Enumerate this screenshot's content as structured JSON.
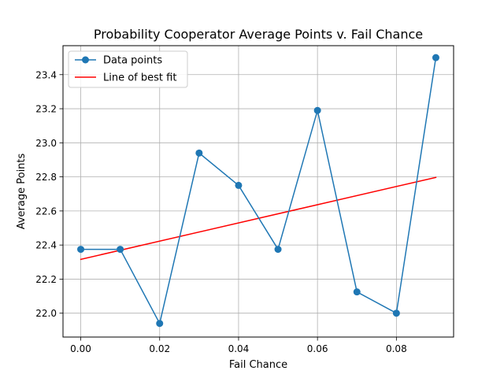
{
  "chart_data": {
    "type": "line",
    "title": "Probability Cooperator Average Points v. Fail Chance",
    "xlabel": "Fail Chance",
    "ylabel": "Average Points",
    "xlim": [
      -0.0045,
      0.0945
    ],
    "ylim": [
      21.86,
      23.57
    ],
    "x_ticks": [
      0.0,
      0.02,
      0.04,
      0.06,
      0.08
    ],
    "x_tick_labels": [
      "0.00",
      "0.02",
      "0.04",
      "0.06",
      "0.08"
    ],
    "y_ticks": [
      22.0,
      22.2,
      22.4,
      22.6,
      22.8,
      23.0,
      23.2,
      23.4
    ],
    "y_tick_labels": [
      "22.0",
      "22.2",
      "22.4",
      "22.6",
      "22.8",
      "23.0",
      "23.2",
      "23.4"
    ],
    "grid": true,
    "legend_position": "top-left",
    "series": [
      {
        "name": "Data points",
        "color": "#1f77b4",
        "marker": "circle",
        "x": [
          0.0,
          0.01,
          0.02,
          0.03,
          0.04,
          0.05,
          0.06,
          0.07,
          0.08,
          0.09
        ],
        "y": [
          22.375,
          22.375,
          21.94,
          22.94,
          22.75,
          22.375,
          23.19,
          22.125,
          22.0,
          23.5
        ]
      },
      {
        "name": "Line of best fit",
        "color": "#ff0000",
        "marker": "none",
        "x": [
          0.0,
          0.09
        ],
        "y": [
          22.316,
          22.797
        ]
      }
    ]
  }
}
